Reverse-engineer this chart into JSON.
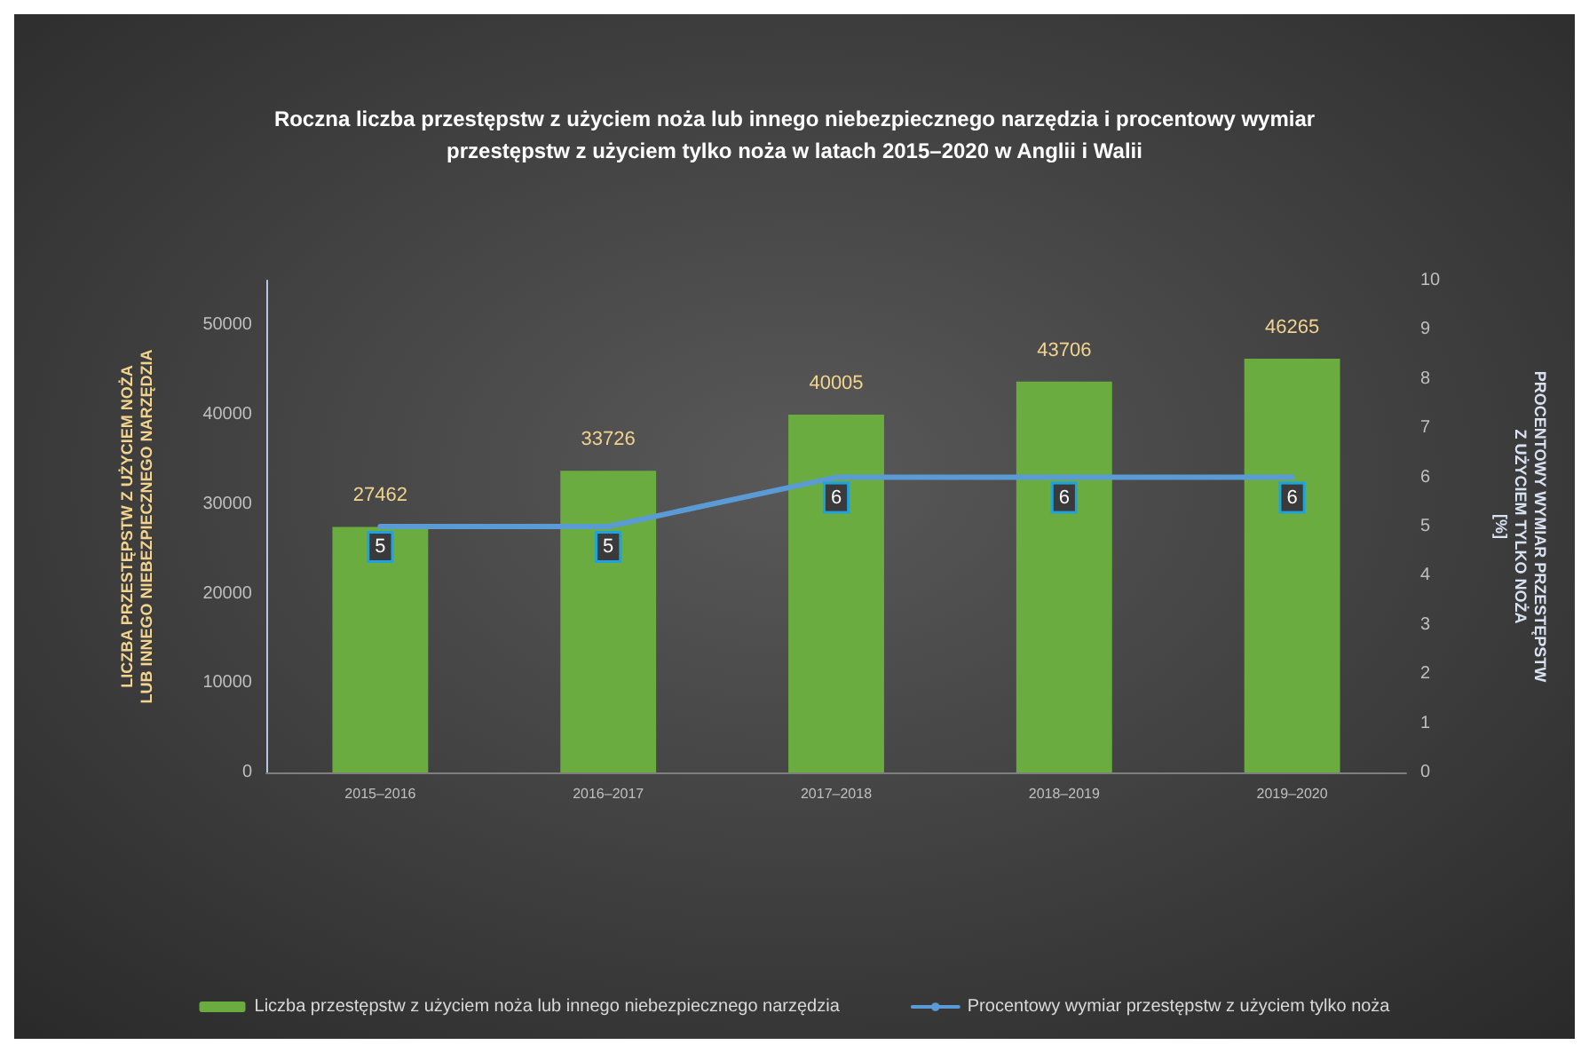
{
  "chart_data": {
    "type": "bar",
    "title": "Roczna liczba przestępstw z użyciem noża lub innego niebezpiecznego narzędzia i procentowy wymiar\nprzestępstw z użyciem tylko noża w latach 2015–2020 w Anglii i Walii",
    "ylabel": "LICZBA PRZESTĘPSTW Z UŻYCIEM NOŻA\nLUB INNEGO NIEBEZPIECZNEGO NARZĘDZIA",
    "y2label": "PROCENTOWY WYMIAR PRZESTĘPSTW\nZ UŻYCIEM TYLKO NOŻA\n[%]",
    "categories": [
      "2015–2016",
      "2016–2017",
      "2017–2018",
      "2018–2019",
      "2019–2020"
    ],
    "series": [
      {
        "name": "Liczba przestępstw z użyciem noża lub innego niebezpiecznego narzędzia",
        "color": "#6aac3f",
        "values": [
          27462,
          33726,
          40005,
          43706,
          46265
        ]
      },
      {
        "name": "Procentowy wymiar przestępstw z użyciem tylko noża",
        "type": "line",
        "axis": "y2",
        "color": "#5b9bd5",
        "values": [
          5,
          5,
          6,
          6,
          6
        ]
      }
    ],
    "ylim": [
      0,
      55000
    ],
    "yticks": [
      0,
      10000,
      20000,
      30000,
      40000,
      50000
    ],
    "y2lim": [
      0,
      10
    ],
    "y2ticks": [
      0,
      1,
      2,
      3,
      4,
      5,
      6,
      7,
      8,
      9,
      10
    ],
    "data_labels": true,
    "legend": "bottom",
    "grid": false,
    "marker": "none",
    "line_style": "solid"
  }
}
